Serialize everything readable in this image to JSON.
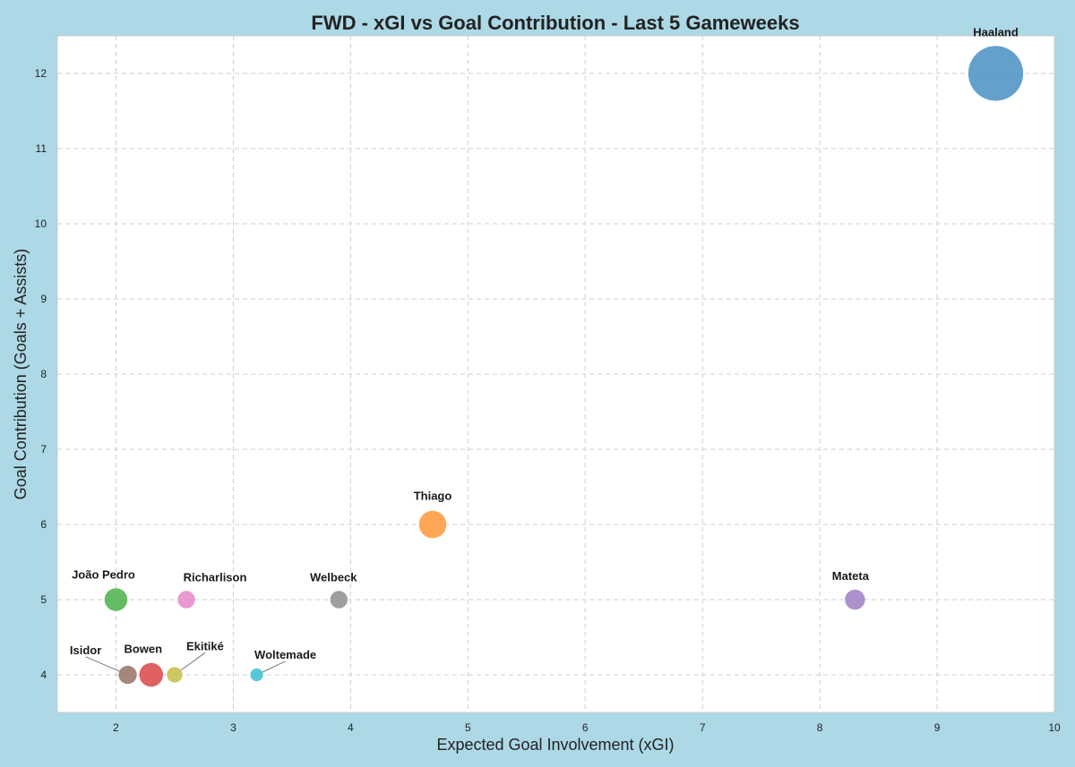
{
  "chart_data": {
    "type": "scatter",
    "title": "FWD - xGI vs Goal Contribution - Last 5 Gameweeks",
    "xlabel": "Expected Goal Involvement (xGI)",
    "ylabel": "Goal Contribution (Goals + Assists)",
    "xlim": [
      1.5,
      10
    ],
    "ylim": [
      3.5,
      12.5
    ],
    "xticks": [
      2,
      3,
      4,
      5,
      6,
      7,
      8,
      9,
      10
    ],
    "yticks": [
      4,
      5,
      6,
      7,
      8,
      9,
      10,
      11,
      12
    ],
    "grid": true,
    "points": [
      {
        "name": "Haaland",
        "x": 9.5,
        "y": 12,
        "size": 12,
        "color": "#5b9bc9"
      },
      {
        "name": "Thiago",
        "x": 4.7,
        "y": 6,
        "size": 6,
        "color": "#ffa24d"
      },
      {
        "name": "João Pedro",
        "x": 2.0,
        "y": 5,
        "size": 5,
        "color": "#5cb85c"
      },
      {
        "name": "Richarlison",
        "x": 2.6,
        "y": 5,
        "size": 3.8,
        "color": "#e993cf"
      },
      {
        "name": "Welbeck",
        "x": 3.9,
        "y": 5,
        "size": 3.8,
        "color": "#999999"
      },
      {
        "name": "Mateta",
        "x": 8.3,
        "y": 5,
        "size": 4.4,
        "color": "#a88bc9"
      },
      {
        "name": "Isidor",
        "x": 2.1,
        "y": 4,
        "size": 4,
        "color": "#a27f76"
      },
      {
        "name": "Bowen",
        "x": 2.3,
        "y": 4,
        "size": 5.2,
        "color": "#dd5959"
      },
      {
        "name": "Ekitiké",
        "x": 2.5,
        "y": 4,
        "size": 3.4,
        "color": "#c9c45a"
      },
      {
        "name": "Woltemade",
        "x": 3.2,
        "y": 4,
        "size": 2.8,
        "color": "#4fc6d6"
      }
    ]
  }
}
